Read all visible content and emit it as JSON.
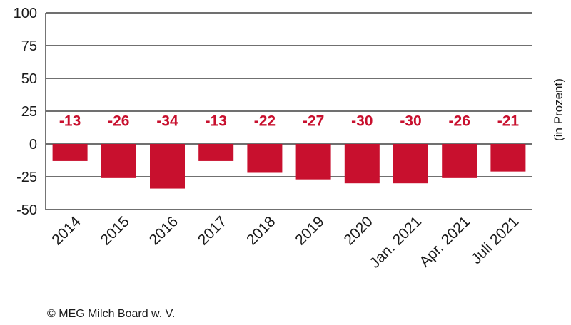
{
  "chart_data": {
    "type": "bar",
    "categories": [
      "2014",
      "2015",
      "2016",
      "2017",
      "2018",
      "2019",
      "2020",
      "Jan. 2021",
      "Apr. 2021",
      "Juli 2021"
    ],
    "series": [
      {
        "values": [
          -13,
          -26,
          -34,
          -13,
          -22,
          -27,
          -30,
          -30,
          -26,
          -21
        ]
      }
    ],
    "data_labels": [
      "-13",
      "-26",
      "-34",
      "-13",
      "-22",
      "-27",
      "-30",
      "-30",
      "-26",
      "-21"
    ],
    "ylabel": "(in Prozent)",
    "ylim": [
      -50,
      100
    ],
    "yticks": [
      100,
      75,
      50,
      25,
      0,
      -25,
      -50
    ],
    "grid": true,
    "bar_color": "#c8102e",
    "label_color": "#c8102e"
  },
  "footer": {
    "copyright": "© MEG Milch Board w. V."
  }
}
